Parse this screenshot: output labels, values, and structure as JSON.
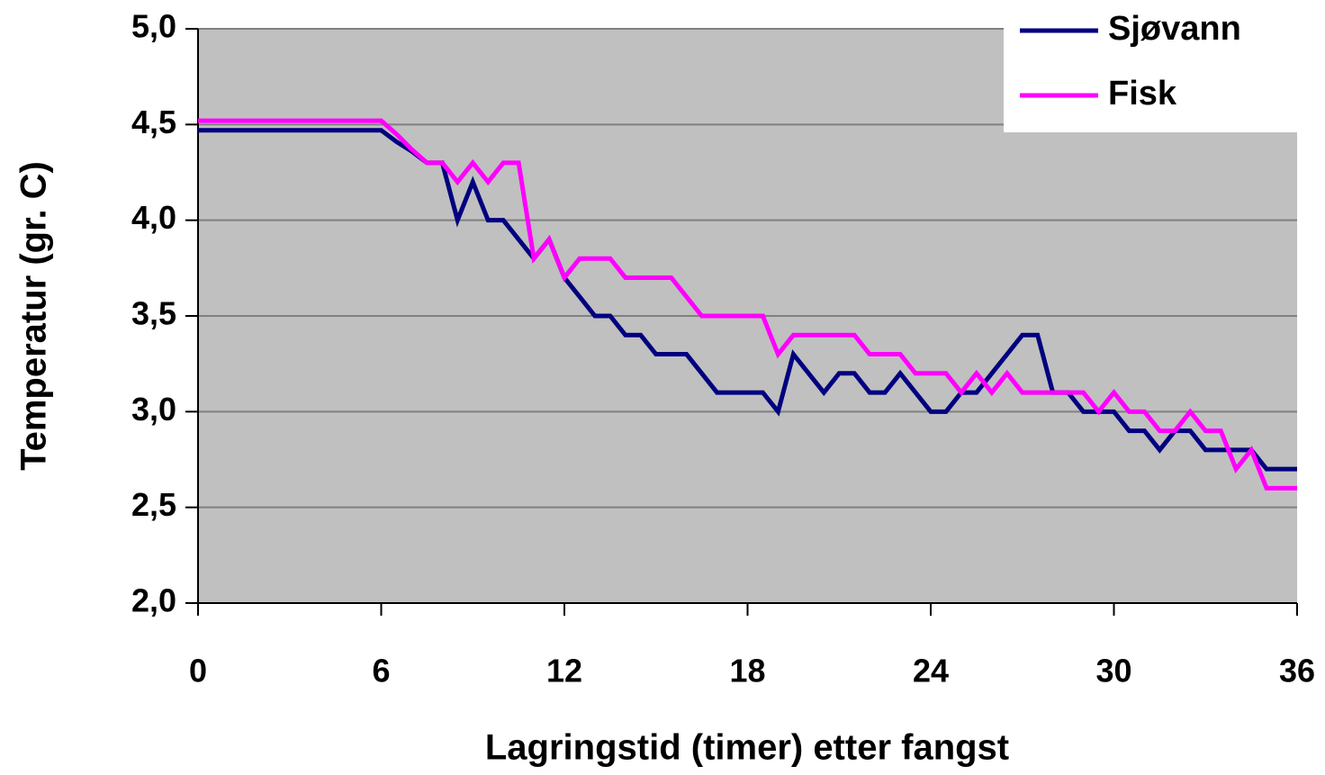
{
  "chart_data": {
    "type": "line",
    "xlabel": "Lagringstid (timer) etter fangst",
    "ylabel": "Temperatur (gr. C)",
    "x": [
      0,
      6,
      6.5,
      7,
      7.5,
      8,
      8.5,
      9,
      9.5,
      10,
      10.5,
      11,
      11.5,
      12,
      12.5,
      13,
      13.5,
      14,
      14.5,
      15,
      15.5,
      16,
      16.5,
      17,
      17.5,
      18,
      18.5,
      19,
      19.5,
      20,
      20.5,
      21,
      21.5,
      22,
      22.5,
      23,
      23.5,
      24,
      24.5,
      25,
      25.5,
      26,
      26.5,
      27,
      27.5,
      28,
      28.5,
      29,
      29.5,
      30,
      30.5,
      31,
      31.5,
      32,
      32.5,
      33,
      33.5,
      34,
      34.5,
      35,
      35.5,
      36
    ],
    "series": [
      {
        "name": "Sjøvann",
        "color": "#000080",
        "values": [
          4.47,
          4.47,
          4.41,
          4.36,
          4.3,
          4.3,
          4.0,
          4.2,
          4.0,
          4.0,
          3.9,
          3.8,
          3.9,
          3.7,
          3.6,
          3.5,
          3.5,
          3.4,
          3.4,
          3.3,
          3.3,
          3.3,
          3.2,
          3.1,
          3.1,
          3.1,
          3.1,
          3.0,
          3.3,
          3.2,
          3.1,
          3.2,
          3.2,
          3.1,
          3.1,
          3.2,
          3.1,
          3.0,
          3.0,
          3.1,
          3.1,
          3.2,
          3.3,
          3.4,
          3.4,
          3.1,
          3.1,
          3.0,
          3.0,
          3.0,
          2.9,
          2.9,
          2.8,
          2.9,
          2.9,
          2.8,
          2.8,
          2.8,
          2.8,
          2.7,
          2.7,
          2.7
        ]
      },
      {
        "name": "Fisk",
        "color": "#ff00ff",
        "values": [
          4.52,
          4.52,
          4.45,
          4.37,
          4.3,
          4.3,
          4.2,
          4.3,
          4.2,
          4.3,
          4.3,
          3.8,
          3.9,
          3.7,
          3.8,
          3.8,
          3.8,
          3.7,
          3.7,
          3.7,
          3.7,
          3.6,
          3.5,
          3.5,
          3.5,
          3.5,
          3.5,
          3.3,
          3.4,
          3.4,
          3.4,
          3.4,
          3.4,
          3.3,
          3.3,
          3.3,
          3.2,
          3.2,
          3.2,
          3.1,
          3.2,
          3.1,
          3.2,
          3.1,
          3.1,
          3.1,
          3.1,
          3.1,
          3.0,
          3.1,
          3.0,
          3.0,
          2.9,
          2.9,
          3.0,
          2.9,
          2.9,
          2.7,
          2.8,
          2.6,
          2.6,
          2.6
        ]
      }
    ],
    "xlim": [
      0,
      36
    ],
    "xticks": [
      0,
      6,
      12,
      18,
      24,
      30,
      36
    ],
    "ylim": [
      2,
      5
    ],
    "yticks": [
      {
        "value": 2,
        "label": "2,0"
      },
      {
        "value": 2.5,
        "label": "2,5"
      },
      {
        "value": 3,
        "label": "3,0"
      },
      {
        "value": 3.5,
        "label": "3,5"
      },
      {
        "value": 4,
        "label": "4,0"
      },
      {
        "value": 4.5,
        "label": "4,5"
      },
      {
        "value": 5,
        "label": "5,0"
      }
    ],
    "grid": true,
    "legend": "upper right",
    "background": "#c0c0c0"
  }
}
